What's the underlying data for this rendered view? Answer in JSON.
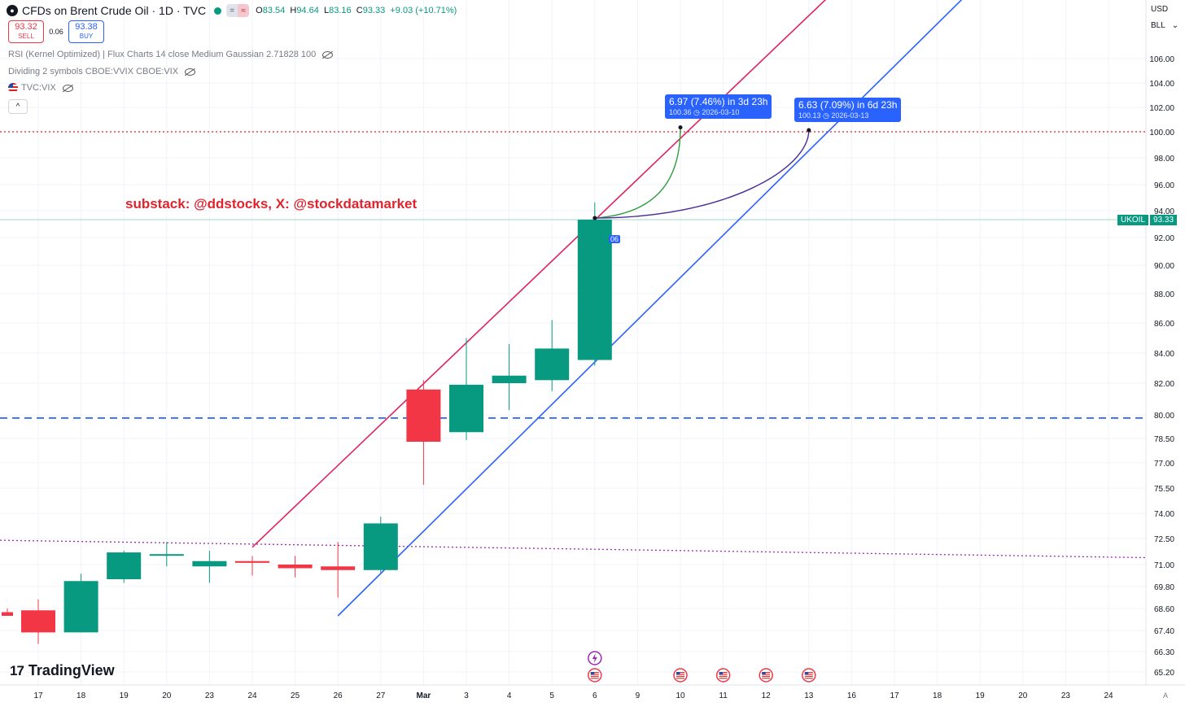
{
  "header": {
    "title": "CFDs on Brent Crude Oil · 1D · TVC",
    "ohlc": {
      "o_label": "O",
      "o": "83.54",
      "h_label": "H",
      "h": "94.64",
      "l_label": "L",
      "l": "83.16",
      "c_label": "C",
      "c": "93.33",
      "change": "+9.03 (+10.71%)"
    }
  },
  "trade": {
    "sell_price": "93.32",
    "sell_label": "SELL",
    "spread": "0.06",
    "buy_price": "93.38",
    "buy_label": "BUY"
  },
  "indicators": [
    {
      "label": "RSI (Kernel Optimized) | Flux Charts 14 close Medium Gaussian 2.71828 100"
    },
    {
      "label": "Dividing 2 symbols CBOE:VVIX CBOE:VIX"
    },
    {
      "label": "TVC:VIX"
    }
  ],
  "collapse_label": "^",
  "watermark": "substack: @ddstocks, X: @stockdatamarket",
  "brand": "TradingView",
  "axis_top": {
    "currency": "USD",
    "unit": "BLL"
  },
  "price_label": {
    "symbol": "UKOIL",
    "value": "93.33"
  },
  "hidden_label": "06",
  "callouts": [
    {
      "headline": "6.97 (7.46%) in 3d 23h",
      "detail": "100.36 ◷ 2026-03-10"
    },
    {
      "headline": "6.63 (7.09%) in 6d 23h",
      "detail": "100.13 ◷ 2026-03-13"
    }
  ],
  "colors": {
    "up": "#089981",
    "down": "#f23645",
    "upper_channel": "#e0245e",
    "lower_channel": "#2962ff",
    "level_dashed": "#2962ff",
    "level_red_dotted": "#e0242e",
    "level_purple_dotted": "#9c27b0",
    "proj_green": "#2e9e3e",
    "proj_purple": "#4a2a9a"
  },
  "chart_data": {
    "type": "candlestick",
    "x_tick_labels": [
      "17",
      "18",
      "19",
      "20",
      "23",
      "24",
      "25",
      "26",
      "27",
      "Mar",
      "3",
      "4",
      "5",
      "6",
      "9",
      "10",
      "11",
      "12",
      "13",
      "16",
      "17",
      "18",
      "19",
      "20",
      "23",
      "24"
    ],
    "y_tick_labels": [
      "65.20",
      "66.30",
      "67.40",
      "68.60",
      "69.80",
      "71.00",
      "72.50",
      "74.00",
      "75.50",
      "77.00",
      "78.50",
      "80.00",
      "82.00",
      "84.00",
      "86.00",
      "88.00",
      "90.00",
      "92.00",
      "94.00",
      "96.00",
      "98.00",
      "100.00",
      "102.00",
      "104.00",
      "106.00"
    ],
    "y_tick_values": [
      65.2,
      66.3,
      67.4,
      68.6,
      69.8,
      71.0,
      72.5,
      74.0,
      75.5,
      77.0,
      78.5,
      80.0,
      82.0,
      84.0,
      86.0,
      88.0,
      90.0,
      92.0,
      94.0,
      96.0,
      98.0,
      100.0,
      102.0,
      104.0,
      106.0
    ],
    "candles": [
      {
        "date": "16",
        "open": 68.4,
        "high": 68.6,
        "low": 68.2,
        "close": 68.2
      },
      {
        "date": "17",
        "open": 68.5,
        "high": 69.1,
        "low": 66.7,
        "close": 67.3
      },
      {
        "date": "18",
        "open": 67.3,
        "high": 70.5,
        "low": 67.3,
        "close": 70.1
      },
      {
        "date": "19",
        "open": 70.2,
        "high": 71.8,
        "low": 70.0,
        "close": 71.7
      },
      {
        "date": "20",
        "open": 71.6,
        "high": 72.3,
        "low": 70.9,
        "close": 71.6
      },
      {
        "date": "23",
        "open": 70.9,
        "high": 71.8,
        "low": 70.0,
        "close": 71.2
      },
      {
        "date": "24",
        "open": 71.2,
        "high": 71.5,
        "low": 70.4,
        "close": 71.1
      },
      {
        "date": "25",
        "open": 71.0,
        "high": 71.5,
        "low": 70.3,
        "close": 70.8
      },
      {
        "date": "26",
        "open": 70.9,
        "high": 72.3,
        "low": 69.2,
        "close": 70.7
      },
      {
        "date": "27",
        "open": 70.7,
        "high": 73.8,
        "low": 70.5,
        "close": 73.4
      },
      {
        "date": "Mar",
        "open": 81.6,
        "high": 82.2,
        "low": 75.7,
        "close": 78.3
      },
      {
        "date": "3",
        "open": 78.9,
        "high": 85.0,
        "low": 78.4,
        "close": 81.9
      },
      {
        "date": "4",
        "open": 82.0,
        "high": 84.6,
        "low": 80.3,
        "close": 82.5
      },
      {
        "date": "5",
        "open": 82.2,
        "high": 86.2,
        "low": 81.5,
        "close": 84.3
      },
      {
        "date": "6",
        "open": 83.54,
        "high": 94.64,
        "low": 83.16,
        "close": 93.33
      }
    ],
    "horizontal_levels": [
      {
        "price": 100.0,
        "style": "dotted",
        "color": "#e0242e"
      },
      {
        "price": 79.8,
        "style": "dashed",
        "color": "#2962ff"
      },
      {
        "price_start": 72.4,
        "price_end": 71.4,
        "style": "dotted",
        "color": "#9c27b0"
      }
    ],
    "trendlines": [
      {
        "name": "upper-channel",
        "color": "#e0245e",
        "from": {
          "date": "24",
          "price": 72.0
        },
        "to": {
          "date": "6",
          "price": 93.3
        }
      },
      {
        "name": "lower-channel",
        "color": "#2962ff",
        "from": {
          "date": "26",
          "price": 68.2
        },
        "to": {
          "date": "6",
          "price": 83.4
        }
      }
    ],
    "projections": [
      {
        "target": 100.36,
        "date": "10",
        "color": "#2e9e3e"
      },
      {
        "target": 100.13,
        "date": "13",
        "color": "#4a2a9a"
      }
    ],
    "last_price": 93.33
  }
}
